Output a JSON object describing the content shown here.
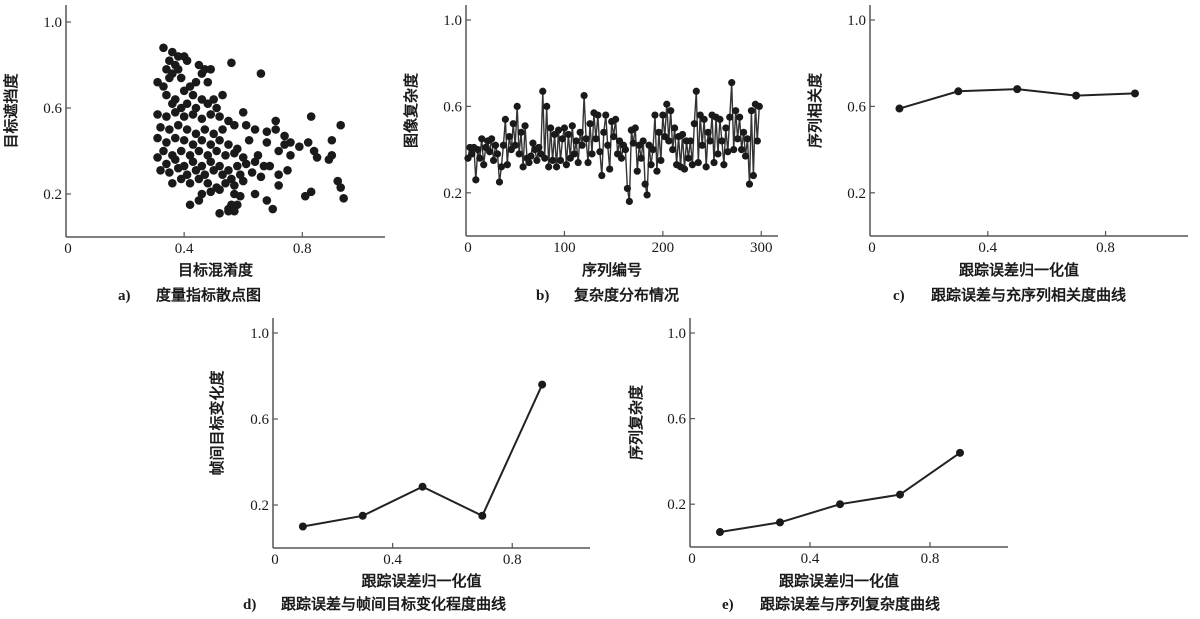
{
  "colors": {
    "ink": "#1a1a1a",
    "axis": "#555555",
    "line": "#222222"
  },
  "chart_data": [
    {
      "id": "a",
      "type": "scatter",
      "caption_letter": "a)",
      "caption": "度量指标散点图",
      "xlabel": "目标混淆度",
      "ylabel": "目标遮挡度",
      "xlim": [
        0,
        1.08
      ],
      "ylim": [
        0,
        1.05
      ],
      "xticks": [
        "0",
        "0.4",
        "0.8"
      ],
      "xtick_values": [
        0,
        0.4,
        0.8
      ],
      "yticks": [
        "0.2",
        "0.6",
        "1.0"
      ],
      "ytick_values": [
        0.2,
        0.6,
        1.0
      ],
      "grid": false,
      "points": [
        [
          0.33,
          0.88
        ],
        [
          0.36,
          0.86
        ],
        [
          0.38,
          0.84
        ],
        [
          0.4,
          0.84
        ],
        [
          0.41,
          0.82
        ],
        [
          0.35,
          0.82
        ],
        [
          0.37,
          0.8
        ],
        [
          0.34,
          0.78
        ],
        [
          0.36,
          0.76
        ],
        [
          0.38,
          0.78
        ],
        [
          0.45,
          0.8
        ],
        [
          0.47,
          0.78
        ],
        [
          0.49,
          0.78
        ],
        [
          0.56,
          0.81
        ],
        [
          0.66,
          0.76
        ],
        [
          0.31,
          0.72
        ],
        [
          0.33,
          0.7
        ],
        [
          0.35,
          0.74
        ],
        [
          0.39,
          0.74
        ],
        [
          0.42,
          0.7
        ],
        [
          0.44,
          0.72
        ],
        [
          0.46,
          0.76
        ],
        [
          0.48,
          0.72
        ],
        [
          0.4,
          0.68
        ],
        [
          0.34,
          0.66
        ],
        [
          0.37,
          0.64
        ],
        [
          0.43,
          0.66
        ],
        [
          0.46,
          0.64
        ],
        [
          0.5,
          0.64
        ],
        [
          0.53,
          0.66
        ],
        [
          0.36,
          0.62
        ],
        [
          0.39,
          0.6
        ],
        [
          0.41,
          0.62
        ],
        [
          0.44,
          0.6
        ],
        [
          0.48,
          0.62
        ],
        [
          0.51,
          0.6
        ],
        [
          0.31,
          0.57
        ],
        [
          0.34,
          0.56
        ],
        [
          0.37,
          0.58
        ],
        [
          0.4,
          0.56
        ],
        [
          0.43,
          0.57
        ],
        [
          0.46,
          0.55
        ],
        [
          0.49,
          0.57
        ],
        [
          0.52,
          0.56
        ],
        [
          0.55,
          0.54
        ],
        [
          0.6,
          0.58
        ],
        [
          0.57,
          0.52
        ],
        [
          0.61,
          0.52
        ],
        [
          0.64,
          0.5
        ],
        [
          0.71,
          0.54
        ],
        [
          0.83,
          0.56
        ],
        [
          0.93,
          0.52
        ],
        [
          0.32,
          0.51
        ],
        [
          0.35,
          0.5
        ],
        [
          0.38,
          0.52
        ],
        [
          0.41,
          0.5
        ],
        [
          0.44,
          0.48
        ],
        [
          0.47,
          0.5
        ],
        [
          0.5,
          0.48
        ],
        [
          0.53,
          0.5
        ],
        [
          0.68,
          0.49
        ],
        [
          0.71,
          0.5
        ],
        [
          0.31,
          0.46
        ],
        [
          0.34,
          0.44
        ],
        [
          0.37,
          0.46
        ],
        [
          0.4,
          0.45
        ],
        [
          0.43,
          0.43
        ],
        [
          0.46,
          0.45
        ],
        [
          0.49,
          0.43
        ],
        [
          0.52,
          0.45
        ],
        [
          0.55,
          0.43
        ],
        [
          0.58,
          0.41
        ],
        [
          0.62,
          0.45
        ],
        [
          0.68,
          0.44
        ],
        [
          0.74,
          0.47
        ],
        [
          0.76,
          0.44
        ],
        [
          0.74,
          0.43
        ],
        [
          0.79,
          0.42
        ],
        [
          0.82,
          0.44
        ],
        [
          0.9,
          0.45
        ],
        [
          0.33,
          0.4
        ],
        [
          0.36,
          0.38
        ],
        [
          0.39,
          0.4
        ],
        [
          0.42,
          0.38
        ],
        [
          0.45,
          0.4
        ],
        [
          0.48,
          0.38
        ],
        [
          0.51,
          0.4
        ],
        [
          0.54,
          0.38
        ],
        [
          0.57,
          0.39
        ],
        [
          0.6,
          0.37
        ],
        [
          0.65,
          0.38
        ],
        [
          0.72,
          0.4
        ],
        [
          0.76,
          0.38
        ],
        [
          0.84,
          0.4
        ],
        [
          0.85,
          0.37
        ],
        [
          0.9,
          0.38
        ],
        [
          0.89,
          0.36
        ],
        [
          0.31,
          0.37
        ],
        [
          0.34,
          0.34
        ],
        [
          0.37,
          0.36
        ],
        [
          0.4,
          0.33
        ],
        [
          0.43,
          0.35
        ],
        [
          0.46,
          0.33
        ],
        [
          0.49,
          0.35
        ],
        [
          0.52,
          0.33
        ],
        [
          0.55,
          0.31
        ],
        [
          0.58,
          0.33
        ],
        [
          0.61,
          0.34
        ],
        [
          0.64,
          0.35
        ],
        [
          0.67,
          0.33
        ],
        [
          0.69,
          0.33
        ],
        [
          0.32,
          0.31
        ],
        [
          0.35,
          0.3
        ],
        [
          0.38,
          0.32
        ],
        [
          0.41,
          0.29
        ],
        [
          0.44,
          0.31
        ],
        [
          0.47,
          0.29
        ],
        [
          0.5,
          0.31
        ],
        [
          0.53,
          0.29
        ],
        [
          0.56,
          0.27
        ],
        [
          0.59,
          0.29
        ],
        [
          0.63,
          0.3
        ],
        [
          0.66,
          0.28
        ],
        [
          0.72,
          0.29
        ],
        [
          0.75,
          0.31
        ],
        [
          0.36,
          0.25
        ],
        [
          0.39,
          0.27
        ],
        [
          0.42,
          0.25
        ],
        [
          0.45,
          0.27
        ],
        [
          0.48,
          0.25
        ],
        [
          0.51,
          0.23
        ],
        [
          0.54,
          0.25
        ],
        [
          0.57,
          0.24
        ],
        [
          0.6,
          0.26
        ],
        [
          0.72,
          0.24
        ],
        [
          0.92,
          0.26
        ],
        [
          0.93,
          0.23
        ],
        [
          0.46,
          0.2
        ],
        [
          0.49,
          0.21
        ],
        [
          0.52,
          0.22
        ],
        [
          0.57,
          0.2
        ],
        [
          0.59,
          0.19
        ],
        [
          0.64,
          0.2
        ],
        [
          0.81,
          0.19
        ],
        [
          0.83,
          0.21
        ],
        [
          0.94,
          0.18
        ],
        [
          0.45,
          0.17
        ],
        [
          0.56,
          0.15
        ],
        [
          0.58,
          0.15
        ],
        [
          0.42,
          0.15
        ],
        [
          0.55,
          0.13
        ],
        [
          0.57,
          0.12
        ],
        [
          0.68,
          0.17
        ],
        [
          0.7,
          0.13
        ],
        [
          0.52,
          0.11
        ],
        [
          0.55,
          0.12
        ]
      ]
    },
    {
      "id": "b",
      "type": "line",
      "caption_letter": "b)",
      "caption": "复杂度分布情况",
      "xlabel": "序列编号",
      "ylabel": "图像复杂度",
      "xlim": [
        0,
        317
      ],
      "ylim": [
        0,
        1.05
      ],
      "xticks": [
        "0",
        "100",
        "200",
        "300"
      ],
      "xtick_values": [
        0,
        100,
        200,
        300
      ],
      "yticks": [
        "0.2",
        "0.6",
        "1.0"
      ],
      "ytick_values": [
        0.2,
        0.6,
        1.0
      ],
      "grid": false,
      "x_step": 2,
      "values": [
        0.36,
        0.41,
        0.38,
        0.41,
        0.26,
        0.4,
        0.36,
        0.45,
        0.33,
        0.41,
        0.44,
        0.39,
        0.45,
        0.35,
        0.42,
        0.38,
        0.25,
        0.32,
        0.42,
        0.54,
        0.33,
        0.46,
        0.4,
        0.52,
        0.42,
        0.6,
        0.38,
        0.48,
        0.32,
        0.51,
        0.36,
        0.34,
        0.37,
        0.43,
        0.4,
        0.35,
        0.41,
        0.38,
        0.67,
        0.36,
        0.6,
        0.32,
        0.5,
        0.35,
        0.47,
        0.32,
        0.49,
        0.35,
        0.45,
        0.5,
        0.33,
        0.47,
        0.36,
        0.51,
        0.38,
        0.44,
        0.34,
        0.48,
        0.42,
        0.65,
        0.45,
        0.34,
        0.52,
        0.38,
        0.57,
        0.45,
        0.56,
        0.39,
        0.28,
        0.48,
        0.56,
        0.42,
        0.31,
        0.53,
        0.46,
        0.54,
        0.38,
        0.44,
        0.36,
        0.42,
        0.4,
        0.22,
        0.16,
        0.49,
        0.43,
        0.5,
        0.3,
        0.42,
        0.36,
        0.44,
        0.24,
        0.19,
        0.42,
        0.33,
        0.4,
        0.56,
        0.3,
        0.48,
        0.35,
        0.56,
        0.46,
        0.61,
        0.44,
        0.58,
        0.4,
        0.5,
        0.33,
        0.46,
        0.32,
        0.47,
        0.31,
        0.44,
        0.36,
        0.44,
        0.33,
        0.52,
        0.67,
        0.34,
        0.56,
        0.42,
        0.54,
        0.32,
        0.48,
        0.44,
        0.56,
        0.34,
        0.55,
        0.38,
        0.54,
        0.44,
        0.33,
        0.5,
        0.39,
        0.55,
        0.71,
        0.4,
        0.58,
        0.45,
        0.55,
        0.4,
        0.48,
        0.37,
        0.45,
        0.24,
        0.58,
        0.28,
        0.61,
        0.44,
        0.6
      ]
    },
    {
      "id": "c",
      "type": "line",
      "caption_letter": "c)",
      "caption": "跟踪误差与充序列相关度曲线",
      "xlabel": "跟踪误差归一化值",
      "ylabel": "序列相关度",
      "xlim": [
        0,
        1.08
      ],
      "ylim": [
        0,
        1.05
      ],
      "xticks": [
        "0",
        "0.4",
        "0.8"
      ],
      "xtick_values": [
        0,
        0.4,
        0.8
      ],
      "yticks": [
        "0.2",
        "0.6",
        "1.0"
      ],
      "ytick_values": [
        0.2,
        0.6,
        1.0
      ],
      "grid": false,
      "x": [
        0.1,
        0.3,
        0.5,
        0.7,
        0.9
      ],
      "y": [
        0.59,
        0.67,
        0.68,
        0.65,
        0.66
      ]
    },
    {
      "id": "d",
      "type": "line",
      "caption_letter": "d)",
      "caption": "跟踪误差与帧间目标变化程度曲线",
      "xlabel": "跟踪误差归一化值",
      "ylabel": "帧间目标变化度",
      "xlim": [
        0,
        1.06
      ],
      "ylim": [
        0,
        1.05
      ],
      "xticks": [
        "0",
        "0.4",
        "0.8"
      ],
      "xtick_values": [
        0,
        0.4,
        0.8
      ],
      "yticks": [
        "0.2",
        "0.6",
        "1.0"
      ],
      "ytick_values": [
        0.2,
        0.6,
        1.0
      ],
      "grid": false,
      "x": [
        0.1,
        0.3,
        0.5,
        0.7,
        0.9
      ],
      "y": [
        0.1,
        0.15,
        0.285,
        0.15,
        0.76
      ]
    },
    {
      "id": "e",
      "type": "line",
      "caption_letter": "e)",
      "caption": "跟踪误差与序列复杂度曲线",
      "xlabel": "跟踪误差归一化值",
      "ylabel": "序列复杂度",
      "xlim": [
        0,
        1.06
      ],
      "ylim": [
        0,
        1.05
      ],
      "xticks": [
        "0",
        "0.4",
        "0.8"
      ],
      "xtick_values": [
        0,
        0.4,
        0.8
      ],
      "yticks": [
        "0.2",
        "0.6",
        "1.0"
      ],
      "ytick_values": [
        0.2,
        0.6,
        1.0
      ],
      "grid": false,
      "x": [
        0.1,
        0.3,
        0.5,
        0.7,
        0.9
      ],
      "y": [
        0.07,
        0.115,
        0.2,
        0.245,
        0.44
      ]
    }
  ]
}
